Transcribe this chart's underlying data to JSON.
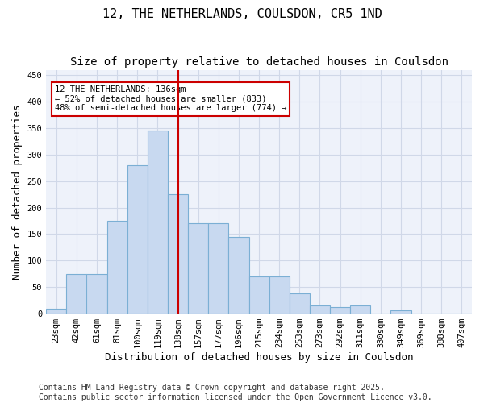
{
  "title": "12, THE NETHERLANDS, COULSDON, CR5 1ND",
  "subtitle": "Size of property relative to detached houses in Coulsdon",
  "xlabel": "Distribution of detached houses by size in Coulsdon",
  "ylabel": "Number of detached properties",
  "bar_labels": [
    "23sqm",
    "42sqm",
    "61sqm",
    "81sqm",
    "100sqm",
    "119sqm",
    "138sqm",
    "157sqm",
    "177sqm",
    "196sqm",
    "215sqm",
    "234sqm",
    "253sqm",
    "273sqm",
    "292sqm",
    "311sqm",
    "330sqm",
    "349sqm",
    "369sqm",
    "388sqm",
    "407sqm"
  ],
  "bar_values": [
    10,
    75,
    75,
    175,
    280,
    345,
    225,
    170,
    170,
    145,
    70,
    70,
    38,
    15,
    13,
    15,
    0,
    6,
    0,
    0,
    0
  ],
  "bar_color": "#c8d9f0",
  "bar_edge_color": "#7bafd4",
  "vline_x": 6,
  "vline_color": "#cc0000",
  "annotation_text": "12 THE NETHERLANDS: 136sqm\n← 52% of detached houses are smaller (833)\n48% of semi-detached houses are larger (774) →",
  "annotation_box_color": "#ffffff",
  "annotation_box_edge_color": "#cc0000",
  "ylim": [
    0,
    460
  ],
  "yticks": [
    0,
    50,
    100,
    150,
    200,
    250,
    300,
    350,
    400,
    450
  ],
  "grid_color": "#d0d8e8",
  "background_color": "#eef2fa",
  "footer": "Contains HM Land Registry data © Crown copyright and database right 2025.\nContains public sector information licensed under the Open Government Licence v3.0.",
  "title_fontsize": 11,
  "subtitle_fontsize": 10,
  "xlabel_fontsize": 9,
  "ylabel_fontsize": 9,
  "tick_fontsize": 7.5,
  "annotation_fontsize": 7.5,
  "footer_fontsize": 7
}
